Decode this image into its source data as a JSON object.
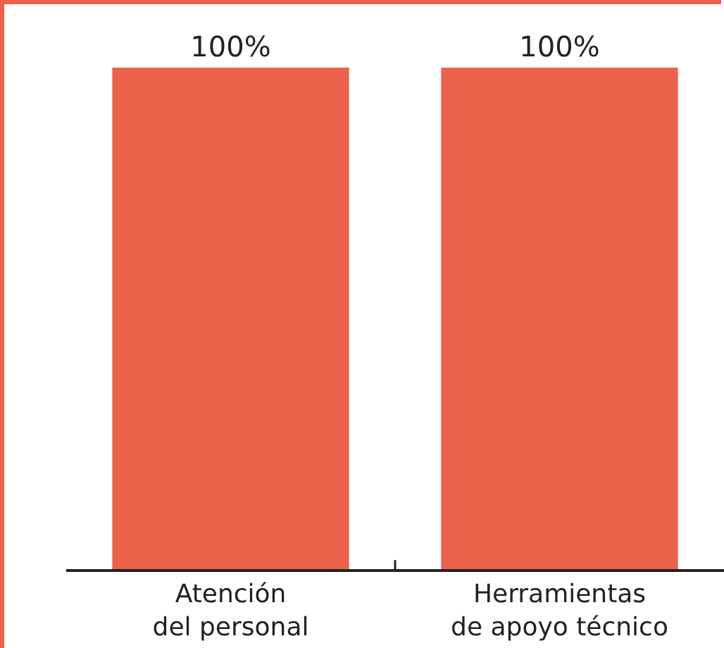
{
  "chart_data": {
    "type": "bar",
    "categories": [
      "Atención del personal",
      "Herramientas de apoyo técnico"
    ],
    "values": [
      100,
      100
    ],
    "value_labels": [
      "100%",
      "100%"
    ],
    "color": "#ec6149",
    "ylim": [
      0,
      100
    ],
    "legend": false
  }
}
